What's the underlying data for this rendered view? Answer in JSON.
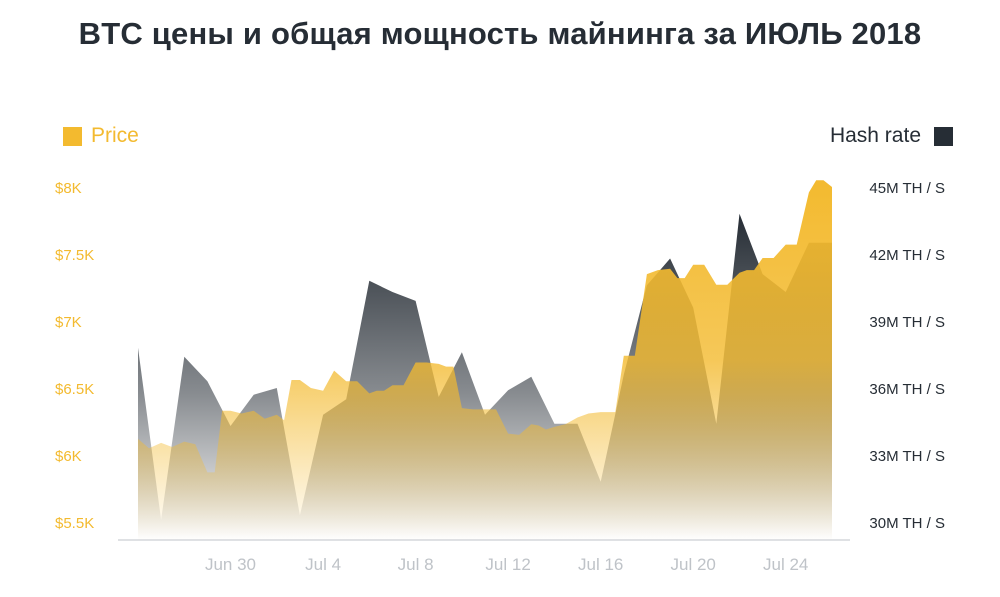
{
  "colors": {
    "price": "#f3ba2f",
    "hash": "#262d35",
    "axis": "#bfc3c8",
    "title": "#262d35"
  },
  "chart_data": {
    "type": "area",
    "title": "BTC цены и общая мощность майнинга за ИЮЛЬ 2018",
    "x_tick_labels": [
      "Jun 30",
      "Jul 4",
      "Jul 8",
      "Jul 12",
      "Jul 16",
      "Jul 20",
      "Jul 24"
    ],
    "x_range": [
      "2018-06-26",
      "2018-07-26"
    ],
    "legend": {
      "price_label": "Price",
      "hash_label": "Hash rate",
      "placement": "top"
    },
    "y_left": {
      "ticks": [
        "$5.5K",
        "$6K",
        "$6.5K",
        "$7K",
        "$7.5K",
        "$8K"
      ],
      "tick_values": [
        5500,
        6000,
        6500,
        7000,
        7500,
        8000
      ],
      "range": [
        5400,
        8250
      ]
    },
    "y_right": {
      "ticks": [
        "30M TH / S",
        "33M TH / S",
        "36M TH / S",
        "39M TH / S",
        "42M TH / S",
        "45M TH / S"
      ],
      "tick_values": [
        30,
        33,
        36,
        39,
        42,
        45
      ],
      "range": [
        29.3,
        46.7
      ],
      "unit": "M TH/s"
    },
    "grid": false,
    "series": [
      {
        "name": "Price",
        "axis": "left",
        "x": [
          "2018-06-26",
          "2018-06-26",
          "2018-06-27",
          "2018-06-27",
          "2018-06-28",
          "2018-06-28",
          "2018-06-29",
          "2018-06-29",
          "2018-06-29",
          "2018-06-30",
          "2018-06-30",
          "2018-07-01",
          "2018-07-01",
          "2018-07-02",
          "2018-07-02",
          "2018-07-02",
          "2018-07-03",
          "2018-07-03",
          "2018-07-04",
          "2018-07-04",
          "2018-07-05",
          "2018-07-05",
          "2018-07-06",
          "2018-07-06",
          "2018-07-06",
          "2018-07-07",
          "2018-07-07",
          "2018-07-08",
          "2018-07-08",
          "2018-07-09",
          "2018-07-09",
          "2018-07-09",
          "2018-07-10",
          "2018-07-10",
          "2018-07-11",
          "2018-07-11",
          "2018-07-12",
          "2018-07-12",
          "2018-07-13",
          "2018-07-13",
          "2018-07-13",
          "2018-07-14",
          "2018-07-14",
          "2018-07-15",
          "2018-07-15",
          "2018-07-16",
          "2018-07-16",
          "2018-07-16",
          "2018-07-17",
          "2018-07-17",
          "2018-07-18",
          "2018-07-18",
          "2018-07-19",
          "2018-07-19",
          "2018-07-19",
          "2018-07-20",
          "2018-07-20",
          "2018-07-21",
          "2018-07-21",
          "2018-07-22",
          "2018-07-22",
          "2018-07-22",
          "2018-07-23",
          "2018-07-23",
          "2018-07-24",
          "2018-07-24",
          "2018-07-25",
          "2018-07-25",
          "2018-07-25",
          "2018-07-26"
        ],
        "values": [
          6120,
          6050,
          6090,
          6060,
          6100,
          6080,
          5870,
          5870,
          6330,
          6330,
          6310,
          6330,
          6270,
          6300,
          6260,
          6560,
          6560,
          6500,
          6480,
          6630,
          6550,
          6550,
          6460,
          6480,
          6480,
          6520,
          6520,
          6690,
          6690,
          6680,
          6660,
          6660,
          6350,
          6340,
          6340,
          6340,
          6160,
          6150,
          6230,
          6220,
          6190,
          6210,
          6230,
          6280,
          6310,
          6320,
          6320,
          6320,
          6740,
          6740,
          7350,
          7380,
          7390,
          7320,
          7320,
          7420,
          7420,
          7270,
          7270,
          7360,
          7380,
          7380,
          7470,
          7470,
          7570,
          7570,
          7960,
          8050,
          8050,
          8000
        ]
      },
      {
        "name": "Hash rate",
        "axis": "right",
        "x": [
          "2018-06-26",
          "2018-06-27",
          "2018-06-28",
          "2018-06-29",
          "2018-06-30",
          "2018-07-01",
          "2018-07-02",
          "2018-07-03",
          "2018-07-04",
          "2018-07-05",
          "2018-07-06",
          "2018-07-07",
          "2018-07-08",
          "2018-07-09",
          "2018-07-10",
          "2018-07-11",
          "2018-07-12",
          "2018-07-13",
          "2018-07-14",
          "2018-07-15",
          "2018-07-16",
          "2018-07-17",
          "2018-07-18",
          "2018-07-19",
          "2018-07-20",
          "2018-07-21",
          "2018-07-22",
          "2018-07-23",
          "2018-07-24",
          "2018-07-25",
          "2018-07-26"
        ],
        "values": [
          37.8,
          30.1,
          37.4,
          36.3,
          34.3,
          35.7,
          36.0,
          30.3,
          34.8,
          35.5,
          40.8,
          40.3,
          39.9,
          35.6,
          37.6,
          34.8,
          35.9,
          36.5,
          34.4,
          34.4,
          31.8,
          36.6,
          40.6,
          41.8,
          39.6,
          34.4,
          43.8,
          41.1,
          40.3,
          42.5,
          42.5
        ]
      }
    ]
  }
}
